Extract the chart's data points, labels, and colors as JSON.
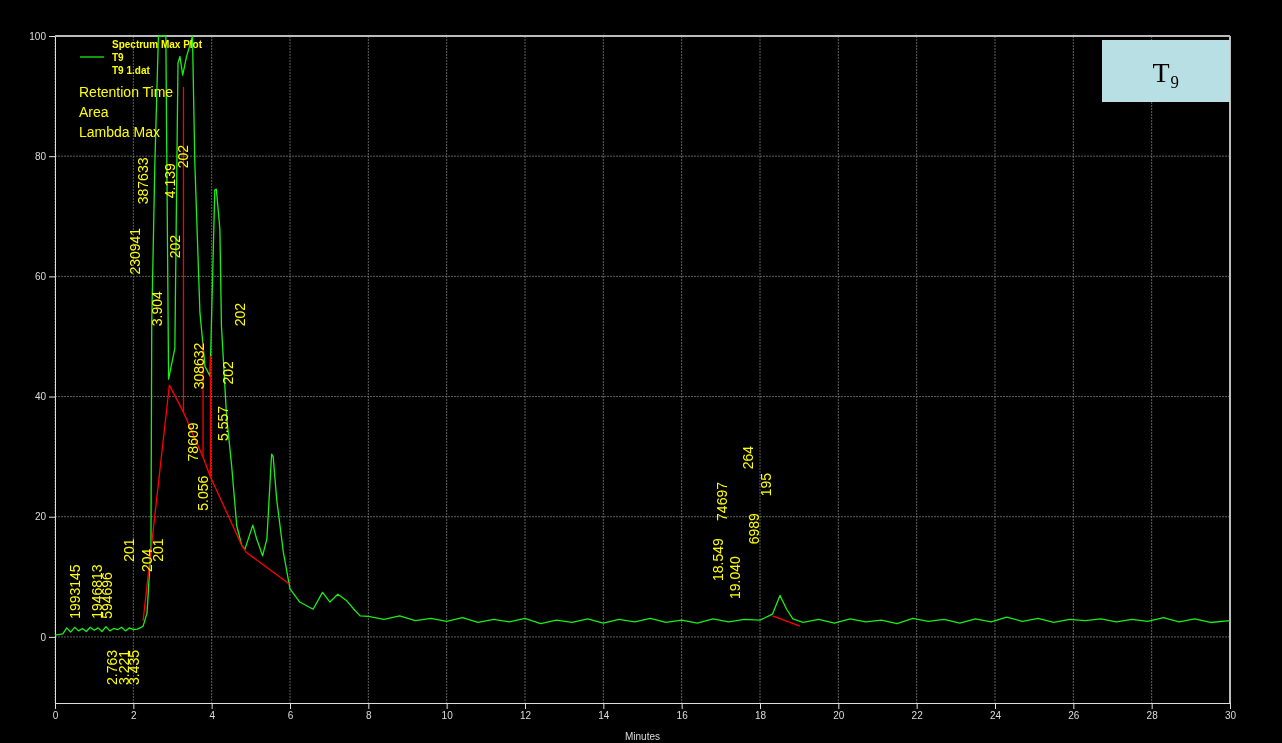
{
  "chart_data": {
    "type": "line",
    "xlabel": "Minutes",
    "legend_title": "Spectrum Max Plot",
    "legend": "top left",
    "grid": true,
    "xlim": [
      0,
      30
    ],
    "xticks": [
      0,
      2,
      4,
      6,
      8,
      10,
      12,
      14,
      16,
      18,
      20,
      22,
      24,
      26,
      28,
      30
    ],
    "ylim": [
      -11,
      100
    ],
    "yticks": [
      0,
      20,
      40,
      60,
      80,
      100
    ],
    "series": [
      {
        "name": "T9",
        "color": "#1aee1a",
        "x": [
          0,
          0.2,
          0.3,
          0.4,
          0.5,
          0.6,
          0.7,
          0.8,
          0.9,
          1.0,
          1.1,
          1.2,
          1.3,
          1.4,
          1.5,
          1.6,
          1.7,
          1.8,
          1.9,
          2.0,
          2.1,
          2.2,
          2.25,
          2.35,
          2.45,
          2.47,
          2.55,
          2.64,
          2.7,
          2.83,
          2.9,
          3.06,
          3.14,
          3.19,
          3.26,
          3.36,
          3.51,
          3.57,
          3.7,
          3.83,
          3.96,
          4.08,
          4.12,
          4.21,
          4.25,
          4.38,
          4.51,
          4.64,
          4.77,
          4.85,
          5.05,
          5.15,
          5.3,
          5.41,
          5.53,
          5.57,
          5.66,
          5.83,
          6.0,
          6.25,
          6.59,
          6.83,
          7.02,
          7.22,
          7.45,
          7.66,
          7.79,
          8.0,
          8.4,
          8.8,
          9.2,
          9.6,
          10.0,
          10.4,
          10.8,
          11.2,
          11.6,
          12.0,
          12.4,
          12.8,
          13.2,
          13.6,
          14.0,
          14.4,
          14.8,
          15.2,
          15.6,
          16.0,
          16.4,
          16.8,
          17.2,
          17.6,
          18.0,
          18.32,
          18.51,
          18.68,
          18.84,
          19.1,
          19.5,
          19.9,
          20.3,
          20.7,
          21.1,
          21.5,
          21.9,
          22.3,
          22.7,
          23.1,
          23.5,
          23.9,
          24.3,
          24.7,
          25.1,
          25.5,
          25.9,
          26.3,
          26.7,
          27.1,
          27.5,
          27.9,
          28.3,
          28.7,
          29.1,
          29.5,
          30.0
        ],
        "values": [
          0.3,
          0.5,
          1.5,
          0.8,
          1.6,
          1.0,
          1.4,
          0.9,
          1.6,
          1.1,
          1.5,
          0.9,
          1.7,
          1.0,
          1.4,
          1.2,
          1.6,
          1.0,
          1.5,
          1.2,
          1.3,
          1.6,
          1.8,
          4,
          15,
          52.3,
          78.9,
          99.9,
          100,
          100,
          42.9,
          48,
          95.5,
          96.6,
          93.5,
          96.6,
          100,
          78.9,
          54,
          45,
          43.4,
          74.4,
          74.5,
          67.8,
          51.7,
          36.8,
          28.5,
          18.5,
          15.2,
          14.6,
          18.6,
          16.3,
          13.5,
          16.3,
          30.4,
          30,
          22.9,
          14.1,
          8,
          5.8,
          4.6,
          7.4,
          5.8,
          7.1,
          6.0,
          4.4,
          3.5,
          3.4,
          2.9,
          3.5,
          2.7,
          3.1,
          2.6,
          3.2,
          2.4,
          2.9,
          2.5,
          3.1,
          2.2,
          2.8,
          2.4,
          3.0,
          2.3,
          2.9,
          2.5,
          3.1,
          2.4,
          2.8,
          2.3,
          3.0,
          2.5,
          2.9,
          2.8,
          3.8,
          6.9,
          4.6,
          3.0,
          2.4,
          2.9,
          2.3,
          3.0,
          2.5,
          2.8,
          2.2,
          3.1,
          2.6,
          2.9,
          2.3,
          3.0,
          2.5,
          3.3,
          2.6,
          3.1,
          2.4,
          2.9,
          2.7,
          3.0,
          2.5,
          2.9,
          2.6,
          3.2,
          2.5,
          3.0,
          2.4,
          2.7
        ]
      },
      {
        "color": "#ff0000",
        "x": [
          2.25,
          2.92,
          3.28,
          3.78,
          3.97,
          4.77,
          4.88,
          5.36,
          5.98
        ],
        "values": [
          2.7,
          41.9,
          37.4,
          29.9,
          26.6,
          15.2,
          14.1,
          11.8,
          8.8
        ]
      },
      {
        "color": "#ff0000",
        "x": [
          3.28,
          3.28
        ],
        "values": [
          37.4,
          91.5
        ]
      },
      {
        "color": "#ff0000",
        "x": [
          3.78,
          3.78
        ],
        "values": [
          29.9,
          49
        ]
      },
      {
        "color": "#ff0000",
        "x": [
          3.97,
          3.97
        ],
        "values": [
          26.6,
          46.7
        ]
      },
      {
        "color": "#ff0000",
        "x": [
          18.32,
          19.02
        ],
        "values": [
          3.5,
          1.8
        ]
      }
    ],
    "annotations": [
      "T9 1.dat",
      "Retention Time",
      "Area",
      "Lambda Max",
      "T₉",
      "1993145",
      "1946813",
      "594696",
      "2.763",
      "3.221",
      "3.435",
      "201",
      "204",
      "201",
      "230941",
      "3.904",
      "387633",
      "4.139",
      "202",
      "202",
      "202",
      "308632",
      "202",
      "5.557",
      "78609",
      "5.056",
      "18.549",
      "19.040",
      "74697",
      "6989",
      "264",
      "195"
    ]
  }
}
